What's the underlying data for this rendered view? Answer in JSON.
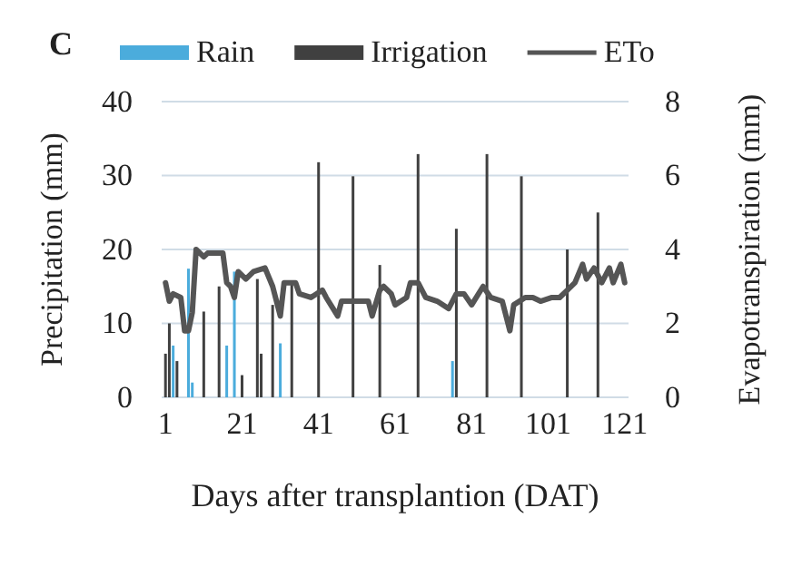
{
  "chart_data": {
    "type": "bar",
    "title": "C",
    "xlabel": "Days after transplantion (DAT)",
    "ylabel": "Precipitation (mm)",
    "y2label": "Evapotranspiration (mm)",
    "xlim": [
      0,
      122
    ],
    "xticks": [
      1,
      21,
      41,
      61,
      81,
      101,
      121
    ],
    "ylim": [
      0,
      40
    ],
    "yticks": [
      0,
      10,
      20,
      30,
      40
    ],
    "y2lim": [
      0,
      8
    ],
    "y2ticks": [
      0,
      2,
      4,
      6,
      8
    ],
    "grid": "y",
    "legend": "top",
    "series": [
      {
        "name": "Rain",
        "color": "#4bacdc",
        "x": [
          3,
          7,
          8,
          17,
          19,
          31,
          76
        ],
        "values": [
          7,
          17.4,
          2,
          7,
          17,
          7.3,
          4.9
        ]
      },
      {
        "name": "Irrigation",
        "color": "#404040",
        "x": [
          1,
          2,
          4,
          11,
          15,
          21,
          25,
          26,
          29,
          34,
          41,
          50,
          57,
          67,
          77,
          85,
          94,
          106,
          114
        ],
        "values": [
          5.9,
          10,
          4.9,
          11.6,
          15,
          3,
          16,
          5.9,
          12.5,
          15.7,
          31.8,
          29.9,
          17.9,
          32.9,
          22.8,
          32.9,
          29.9,
          20,
          25
        ]
      },
      {
        "name": "ETo",
        "type": "line",
        "axis": "y2",
        "color": "#555555",
        "line_style": "solid",
        "x": [
          1,
          2,
          3,
          5,
          6,
          7,
          8,
          9,
          11,
          12,
          14,
          16,
          17,
          18,
          19,
          20,
          22,
          24,
          27,
          29,
          31,
          32,
          35,
          36,
          39,
          42,
          43,
          46,
          47,
          51,
          54,
          55,
          57,
          58,
          60,
          61,
          64,
          65,
          67,
          69,
          72,
          75,
          77,
          79,
          81,
          84,
          86,
          89,
          91,
          92,
          95,
          97,
          99,
          102,
          104,
          106,
          108,
          110,
          111,
          113,
          115,
          117,
          118,
          120,
          121
        ],
        "values": [
          3.1,
          2.6,
          2.8,
          2.7,
          1.8,
          1.8,
          2.3,
          4,
          3.8,
          3.9,
          3.9,
          3.9,
          3.1,
          3,
          2.7,
          3.4,
          3.2,
          3.4,
          3.5,
          3,
          2.2,
          3.1,
          3.1,
          2.8,
          2.7,
          2.9,
          2.7,
          2.2,
          2.6,
          2.6,
          2.6,
          2.2,
          2.9,
          3,
          2.8,
          2.5,
          2.7,
          3.1,
          3.1,
          2.7,
          2.6,
          2.4,
          2.8,
          2.8,
          2.5,
          3,
          2.7,
          2.6,
          1.8,
          2.5,
          2.7,
          2.7,
          2.6,
          2.7,
          2.7,
          2.9,
          3.1,
          3.6,
          3.2,
          3.5,
          3.1,
          3.5,
          3.1,
          3.6,
          3.1
        ]
      }
    ]
  }
}
